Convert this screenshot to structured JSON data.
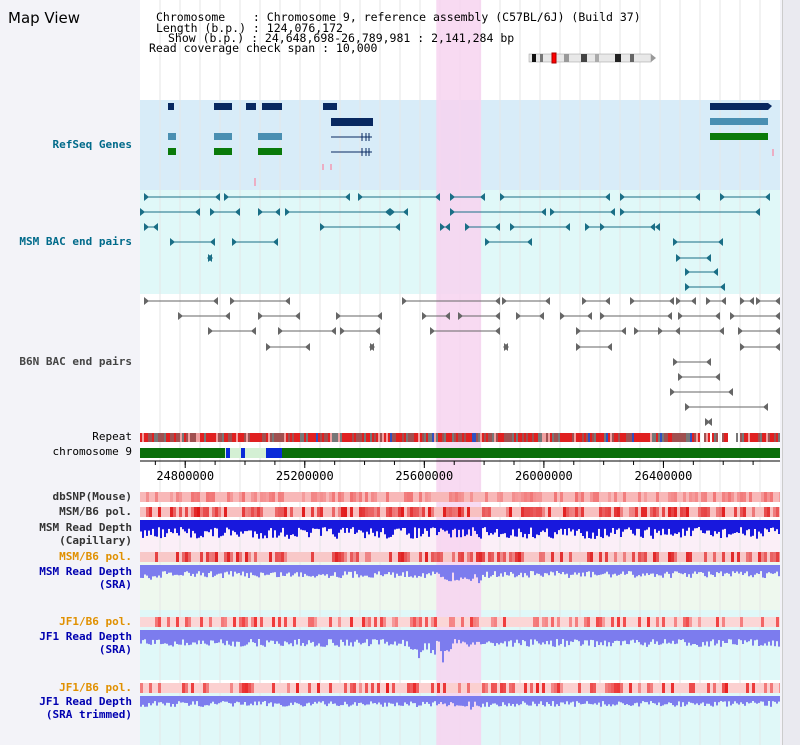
{
  "page": {
    "title": "Map View"
  },
  "info": {
    "chromosome_line": "Chromosome    : Chromosome 9, reference assembly (C57BL/6J) (Build 37)",
    "length_line": "Length (b.p.) : 124,076,172",
    "show_line": "Show (b.p.) : 24,648,698-26,789,981 : 2,141,284 bp",
    "coverage_line": "Read coverage check span : 10,000"
  },
  "tracks": {
    "refseq": "RefSeq Genes",
    "msm_bac": "MSM BAC end pairs",
    "b6n_bac": "B6N BAC end pairs",
    "repeat": "Repeat",
    "chromosome": "chromosome 9",
    "dbsnp": "dbSNP(Mouse)",
    "msm_pol_1": "MSM/B6 pol.",
    "msm_depth_cap_1": "MSM Read Depth",
    "msm_depth_cap_2": "(Capillary)",
    "msm_pol_2": "MSM/B6 pol.",
    "msm_depth_sra_1": "MSM Read Depth",
    "msm_depth_sra_2": "(SRA)",
    "jf1_pol_1": "JF1/B6 pol.",
    "jf1_depth_sra_1": "JF1 Read Depth",
    "jf1_depth_sra_2": "(SRA)",
    "jf1_pol_2": "JF1/B6 pol.",
    "jf1_depth_trim_1": "JF1 Read Depth",
    "jf1_depth_trim_2": "(SRA trimmed)"
  },
  "axis": {
    "start": 24648698,
    "end": 26789981,
    "tick_labels": [
      "24800000",
      "25200000",
      "25600000",
      "26000000",
      "26400000"
    ],
    "tick_values": [
      24800000,
      25200000,
      25600000,
      26000000,
      26400000
    ]
  },
  "highlight": {
    "start": 25640000,
    "end": 25790000
  },
  "colors": {
    "refseq_bg": "#d8ecf8",
    "bac_bg": "#e0f8f8",
    "highlight": "#f7d3f0",
    "navy_gene": "#082860",
    "teal_gene": "#4a8fb2",
    "green_gene": "#0a7a0a",
    "msm_bac": "#1a6e86",
    "b6n_bac": "#666666",
    "chromosome": "#0a6e0a",
    "depth_capillary": "#1818dd",
    "depth_sra": "#7c7cee"
  }
}
